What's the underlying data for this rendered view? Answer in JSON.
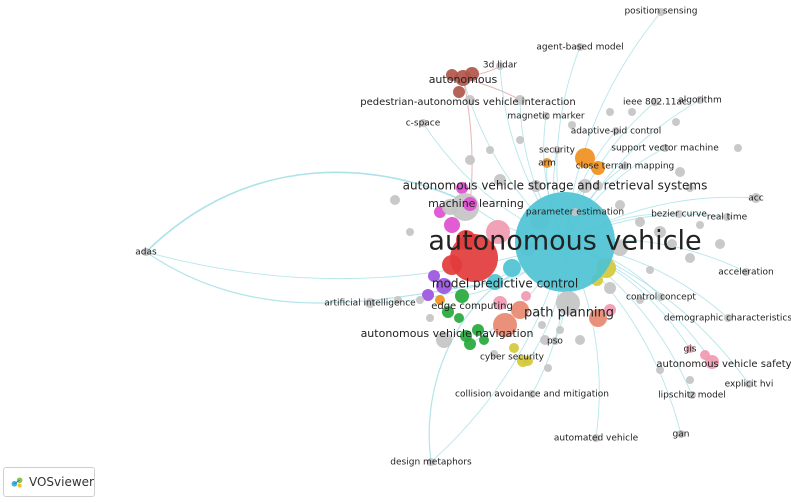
{
  "app": {
    "brand_name": "VOSviewer",
    "brand_icon": "vosviewer-logo-icon"
  },
  "network": {
    "center_term": "autonomous vehicle",
    "colors": {
      "cyan": "#4ec3d4",
      "red": "#e33b3b",
      "brown": "#b0564a",
      "orange": "#f0901e",
      "magenta": "#e04ed0",
      "purple": "#9a55e0",
      "green": "#26a83c",
      "yellow": "#d4c93a",
      "pink": "#f09ab0",
      "salmon": "#e88870",
      "grey": "#c4c4c4",
      "link": "#9fdde6"
    },
    "terms": [
      "autonomous vehicle",
      "autonomous vehicle storage and retrieval systems",
      "path planning",
      "model predictive control",
      "machine learning",
      "autonomous vehicle navigation",
      "autonomous",
      "edge computing",
      "artificial intelligence",
      "cyber security",
      "autonomous vehicle safety",
      "pedestrian-autonomous vehicle interaction",
      "adas",
      "position sensing",
      "agent-based model",
      "3d lidar",
      "magnetic marker",
      "c-space",
      "ieee 802.11ac",
      "algorithm",
      "adaptive-pid control",
      "security",
      "support vector machine",
      "arm",
      "close terrain mapping",
      "acc",
      "parameter estimation",
      "bezier curve",
      "real time",
      "acceleration",
      "control concept",
      "demographic characteristics",
      "gis",
      "explicit hvi",
      "pso",
      "collision avoidance and mitigation",
      "lipschitz model",
      "gan",
      "automated vehicle",
      "design metaphors"
    ]
  }
}
